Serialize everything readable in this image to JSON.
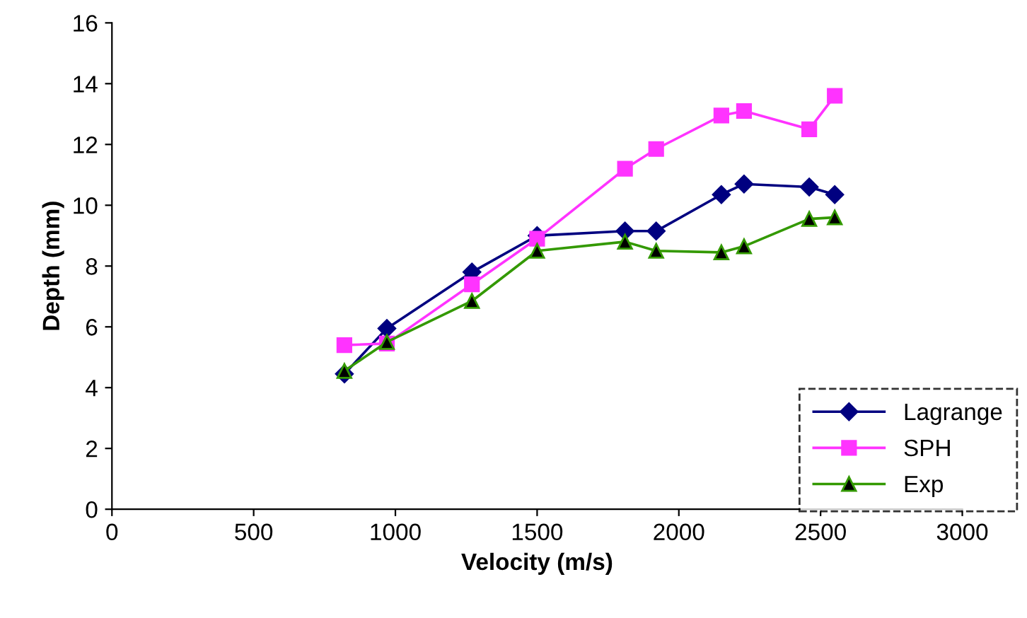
{
  "chart_data": {
    "type": "line",
    "xlabel": "Velocity (m/s)",
    "ylabel": "Depth (mm)",
    "x": [
      820,
      970,
      1270,
      1500,
      1810,
      1920,
      2150,
      2230,
      2460,
      2550
    ],
    "series": [
      {
        "name": "Lagrange",
        "color": "#000080",
        "marker": "diamond",
        "values": [
          4.45,
          5.95,
          7.8,
          9.0,
          9.15,
          9.15,
          10.35,
          10.7,
          10.6,
          10.35
        ]
      },
      {
        "name": "SPH",
        "color": "#ff33ff",
        "marker": "square",
        "values": [
          5.4,
          5.45,
          7.4,
          8.9,
          11.2,
          11.85,
          12.95,
          13.1,
          12.5,
          13.6
        ]
      },
      {
        "name": "Exp",
        "color": "#339900",
        "marker": "triangle",
        "values": [
          4.55,
          5.5,
          6.85,
          8.5,
          8.8,
          8.5,
          8.45,
          8.65,
          9.55,
          9.6
        ]
      }
    ],
    "xlim": [
      0,
      3000
    ],
    "xticks": [
      0,
      500,
      1000,
      1500,
      2000,
      2500,
      3000
    ],
    "ylim": [
      0,
      16
    ],
    "yticks": [
      0,
      2,
      4,
      6,
      8,
      10,
      12,
      14,
      16
    ],
    "grid": false,
    "legend": "right",
    "line_style": "solid"
  }
}
